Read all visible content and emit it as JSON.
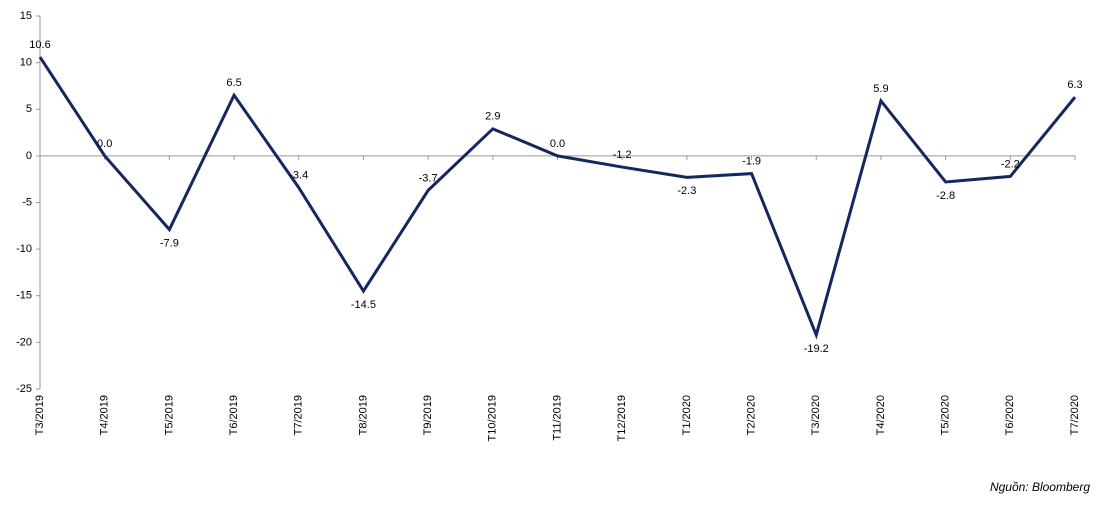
{
  "chart_data": {
    "type": "line",
    "categories": [
      "T3/2019",
      "T4/2019",
      "T5/2019",
      "T6/2019",
      "T7/2019",
      "T8/2019",
      "T9/2019",
      "T10/2019",
      "T11/2019",
      "T12/2019",
      "T1/2020",
      "T2/2020",
      "T3/2020",
      "T4/2020",
      "T5/2020",
      "T6/2020",
      "T7/2020"
    ],
    "series": [
      {
        "color": "#14275e",
        "values": [
          10.6,
          0.0,
          -7.9,
          6.5,
          -3.4,
          -14.5,
          -3.7,
          2.9,
          0.0,
          -1.2,
          -2.3,
          -1.9,
          -19.2,
          5.9,
          -2.8,
          -2.2,
          6.3
        ],
        "value_labels": [
          "10.6",
          "0.0",
          "-7.9",
          "6.5",
          "-3.4",
          "-14.5",
          "-3.7",
          "2.9",
          "0.0",
          "-1.2",
          "-2.3",
          "-1.9",
          "-19.2",
          "5.9",
          "-2.8",
          "-2.2",
          "6.3"
        ]
      }
    ],
    "ylim": [
      -25,
      15
    ],
    "yticks": [
      -25,
      -20,
      -15,
      -10,
      -5,
      0,
      5,
      10,
      15
    ],
    "source": "Nguồn: Bloomberg"
  }
}
